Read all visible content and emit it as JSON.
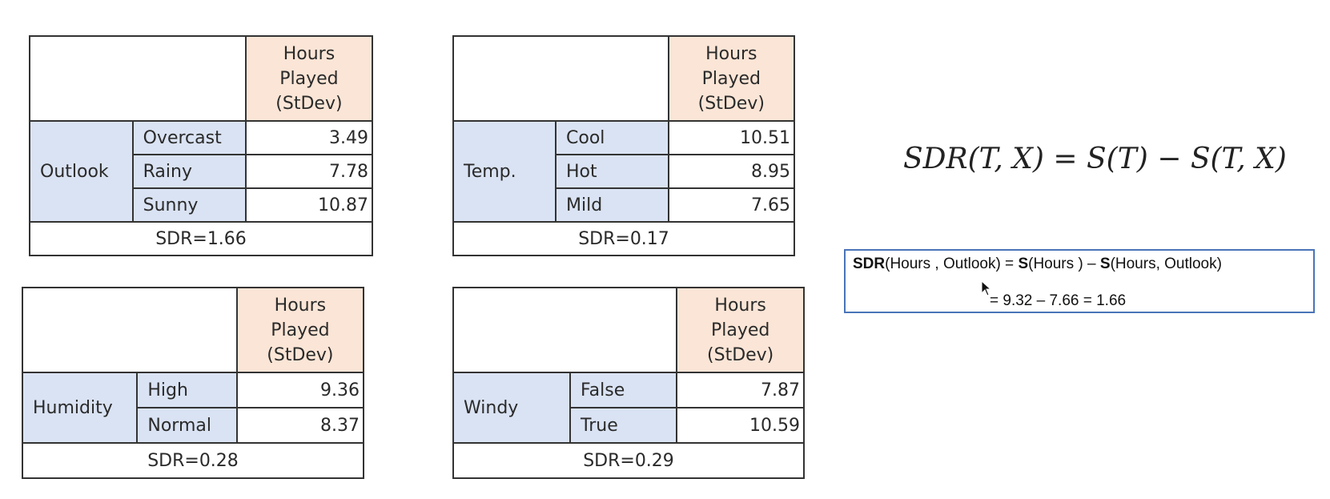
{
  "header": "Hours Played (StDev)",
  "header_lines": [
    "Hours",
    "Played",
    "(StDev)"
  ],
  "tables": [
    {
      "attribute": "Outlook",
      "rows": [
        {
          "value": "Overcast",
          "stdev": "3.49"
        },
        {
          "value": "Rainy",
          "stdev": "7.78"
        },
        {
          "value": "Sunny",
          "stdev": "10.87"
        }
      ],
      "sdr": "SDR=1.66"
    },
    {
      "attribute": "Temp.",
      "rows": [
        {
          "value": "Cool",
          "stdev": "10.51"
        },
        {
          "value": "Hot",
          "stdev": "8.95"
        },
        {
          "value": "Mild",
          "stdev": "7.65"
        }
      ],
      "sdr": "SDR=0.17"
    },
    {
      "attribute": "Humidity",
      "rows": [
        {
          "value": "High",
          "stdev": "9.36"
        },
        {
          "value": "Normal",
          "stdev": "8.37"
        }
      ],
      "sdr": "SDR=0.28"
    },
    {
      "attribute": "Windy",
      "rows": [
        {
          "value": "False",
          "stdev": "7.87"
        },
        {
          "value": "True",
          "stdev": "10.59"
        }
      ],
      "sdr": "SDR=0.29"
    }
  ],
  "formula": "SDR(T, X) = S(T) − S(T, X)",
  "calc_box": {
    "line1": {
      "sdr_bold": "SDR",
      "sdr_args": "(Hours , Outlook) = ",
      "s1_bold": "S",
      "s1_args": "(Hours ) – ",
      "s2_bold": "S",
      "s2_args": "(Hours, Outlook)"
    },
    "line2": "= 9.32 – 7.66 = 1.66"
  }
}
